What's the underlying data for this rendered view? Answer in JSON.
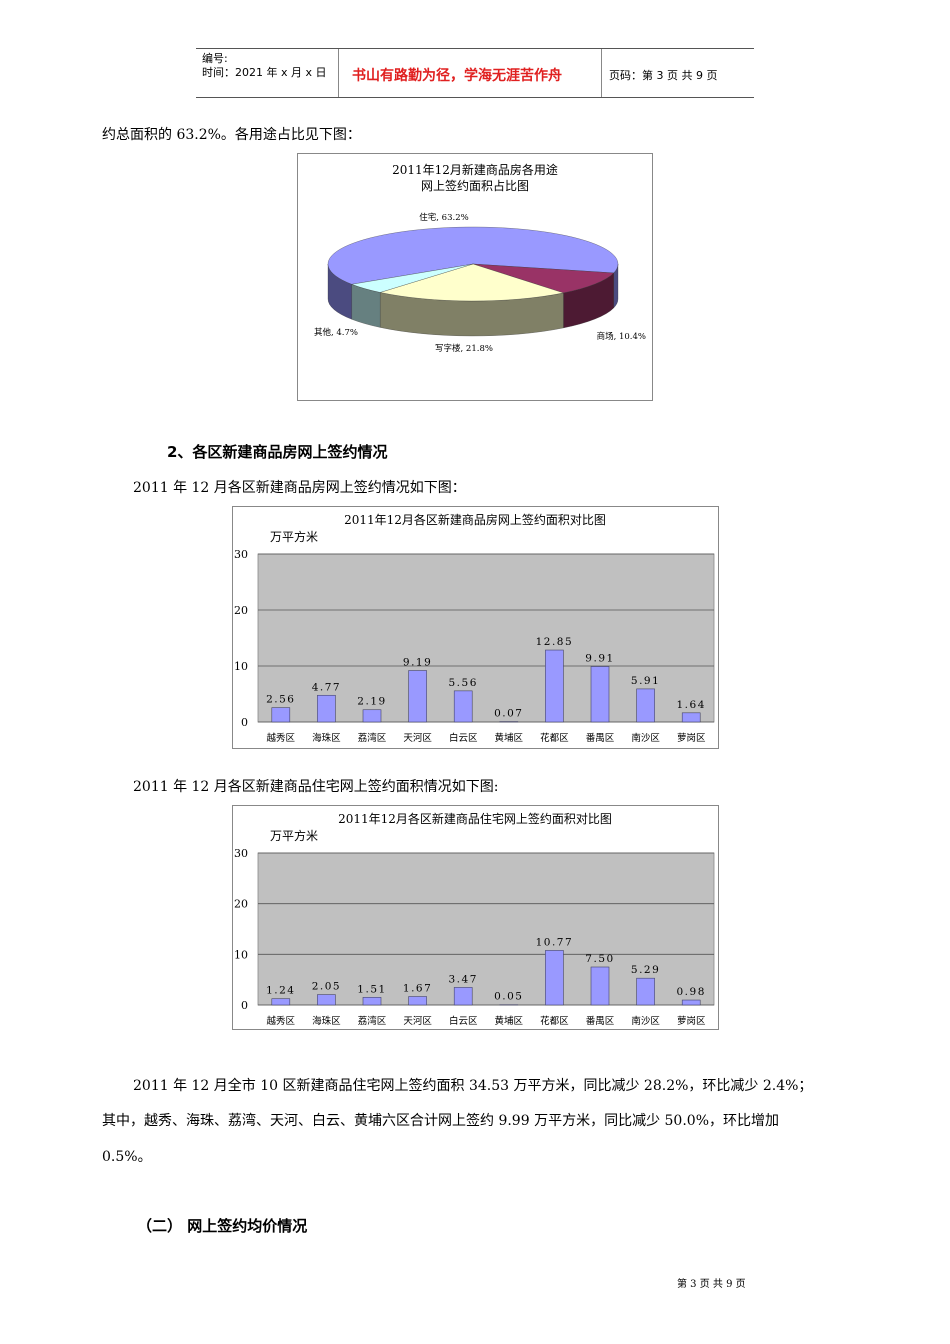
{
  "header": {
    "number_label": "编号:",
    "time_label": "时间：2021 年 x 月 x 日",
    "motto": "书山有路勤为径，学海无涯苦作舟",
    "page_info": "页码：第 3 页  共 9 页"
  },
  "body": {
    "line1": "约总面积的 63.2%。各用途占比见下图：",
    "section2_heading": "2、各区新建商品房网上签约情况",
    "section2_intro": "2011 年 12 月各区新建商品房网上签约情况如下图：",
    "residential_intro": "2011 年 12 月各区新建商品住宅网上签约面积情况如下图:",
    "para1_line1": "2011 年 12 月全市 10 区新建商品住宅网上签约面积 34.53 万平方米，同比减少 28.2%，环比减少 2.4%；",
    "para1_line2": "其中，越秀、海珠、荔湾、天河、白云、黄埔六区合计网上签约 9.99 万平方米，同比减少 50.0%，环比增加",
    "para1_line3": "0.5%。",
    "section_b_heading": "（二）   网上签约均价情况"
  },
  "footer": {
    "page": "第 3 页 共 9 页"
  },
  "chart_data": [
    {
      "type": "pie",
      "title_line1": "2011年12月新建商品房各用途",
      "title_line2": "网上签约面积占比图",
      "categories": [
        "住宅",
        "商场",
        "写字楼",
        "其他"
      ],
      "values": [
        63.2,
        10.4,
        21.8,
        4.7
      ],
      "labels": [
        "住宅, 63.2%",
        "商场, 10.4%",
        "写字楼, 21.8%",
        "其他, 4.7%"
      ],
      "colors": [
        "#9999ff",
        "#993366",
        "#ffffcc",
        "#ccffff"
      ],
      "side_colors": [
        "#4b4b80",
        "#4d1a33",
        "#808066",
        "#668080"
      ],
      "style": "3d"
    },
    {
      "type": "bar",
      "title": "2011年12月各区新建商品房网上签约面积对比图",
      "ylabel": "万平方米",
      "categories": [
        "越秀区",
        "海珠区",
        "荔湾区",
        "天河区",
        "白云区",
        "黄埔区",
        "花都区",
        "番禺区",
        "南沙区",
        "萝岗区"
      ],
      "values": [
        2.56,
        4.77,
        2.19,
        9.19,
        5.56,
        0.07,
        12.85,
        9.91,
        5.91,
        1.64
      ],
      "value_labels": [
        "2.56",
        "4.77",
        "2.19",
        "9.19",
        "5.56",
        "0.07",
        "12.85",
        "9.91",
        "5.91",
        "1.64"
      ],
      "ylim": [
        0,
        30
      ],
      "yticks": [
        "0",
        "10",
        "20",
        "30"
      ],
      "grid": true,
      "bar_color": "#9999ff",
      "plot_bg": "#c0c0c0"
    },
    {
      "type": "bar",
      "title": "2011年12月各区新建商品住宅网上签约面积对比图",
      "ylabel": "万平方米",
      "categories": [
        "越秀区",
        "海珠区",
        "荔湾区",
        "天河区",
        "白云区",
        "黄埔区",
        "花都区",
        "番禺区",
        "南沙区",
        "萝岗区"
      ],
      "values": [
        1.24,
        2.05,
        1.51,
        1.67,
        3.47,
        0.05,
        10.77,
        7.5,
        5.29,
        0.98
      ],
      "value_labels": [
        "1.24",
        "2.05",
        "1.51",
        "1.67",
        "3.47",
        "0.05",
        "10.77",
        "7.50",
        "5.29",
        "0.98"
      ],
      "ylim": [
        0,
        30
      ],
      "yticks": [
        "0",
        "10",
        "20",
        "30"
      ],
      "grid": true,
      "bar_color": "#9999ff",
      "plot_bg": "#c0c0c0"
    }
  ]
}
